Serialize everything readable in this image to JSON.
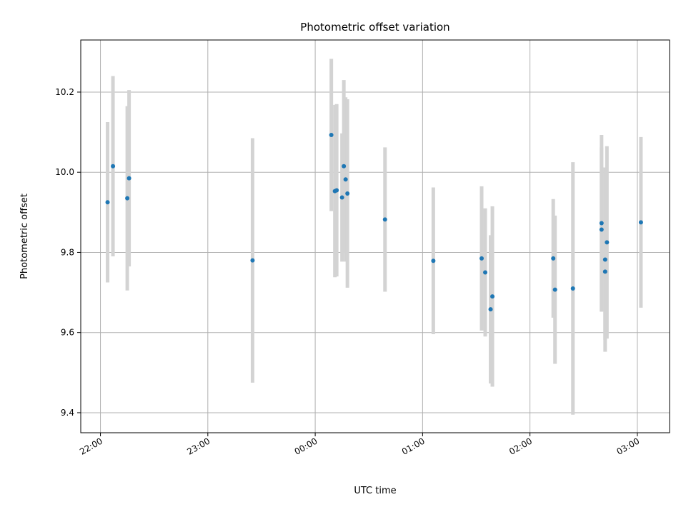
{
  "chart_data": {
    "type": "scatter",
    "title": "Photometric offset variation",
    "xlabel": "UTC time",
    "ylabel": "Photometric offset",
    "x_axis_kind": "time",
    "xlim": [
      "21:49",
      "03:18"
    ],
    "ylim": [
      9.35,
      10.33
    ],
    "x_ticks": [
      "22:00",
      "23:00",
      "00:00",
      "01:00",
      "02:00",
      "03:00"
    ],
    "y_ticks": [
      9.4,
      9.6,
      9.8,
      10.0,
      10.2
    ],
    "y_tick_labels": [
      "9.4",
      "9.6",
      "9.8",
      "10.0",
      "10.2"
    ],
    "grid": true,
    "legend": "none",
    "colors": {
      "point": "#1f77b4",
      "errorbar": "#d3d3d3",
      "grid": "#b0b0b0"
    },
    "points": [
      {
        "x": "22:04",
        "y": 9.925,
        "yerr": 0.2
      },
      {
        "x": "22:07",
        "y": 10.015,
        "yerr": 0.225
      },
      {
        "x": "22:15",
        "y": 9.935,
        "yerr": 0.23
      },
      {
        "x": "22:16",
        "y": 9.985,
        "yerr": 0.22
      },
      {
        "x": "23:25",
        "y": 9.78,
        "yerr": 0.305
      },
      {
        "x": "00:09",
        "y": 10.093,
        "yerr": 0.19
      },
      {
        "x": "00:11",
        "y": 9.953,
        "yerr": 0.215
      },
      {
        "x": "00:12",
        "y": 9.955,
        "yerr": 0.215
      },
      {
        "x": "00:15",
        "y": 9.937,
        "yerr": 0.16
      },
      {
        "x": "00:16",
        "y": 10.015,
        "yerr": 0.215
      },
      {
        "x": "00:17",
        "y": 9.982,
        "yerr": 0.205
      },
      {
        "x": "00:18",
        "y": 9.947,
        "yerr": 0.235
      },
      {
        "x": "00:39",
        "y": 9.882,
        "yerr": 0.18
      },
      {
        "x": "01:06",
        "y": 9.779,
        "yerr": 0.183
      },
      {
        "x": "01:33",
        "y": 9.785,
        "yerr": 0.18
      },
      {
        "x": "01:35",
        "y": 9.75,
        "yerr": 0.16
      },
      {
        "x": "01:38",
        "y": 9.658,
        "yerr": 0.185
      },
      {
        "x": "01:39",
        "y": 9.69,
        "yerr": 0.225
      },
      {
        "x": "02:13",
        "y": 9.785,
        "yerr": 0.148
      },
      {
        "x": "02:14",
        "y": 9.707,
        "yerr": 0.185
      },
      {
        "x": "02:24",
        "y": 9.71,
        "yerr": 0.315
      },
      {
        "x": "02:40",
        "y": 9.857,
        "yerr": 0.205
      },
      {
        "x": "02:40",
        "y": 9.873,
        "yerr": 0.22
      },
      {
        "x": "02:42",
        "y": 9.782,
        "yerr": 0.23
      },
      {
        "x": "02:43",
        "y": 9.825,
        "yerr": 0.24
      },
      {
        "x": "02:42",
        "y": 9.752,
        "yerr": 0.17
      },
      {
        "x": "03:02",
        "y": 9.875,
        "yerr": 0.213
      }
    ]
  }
}
